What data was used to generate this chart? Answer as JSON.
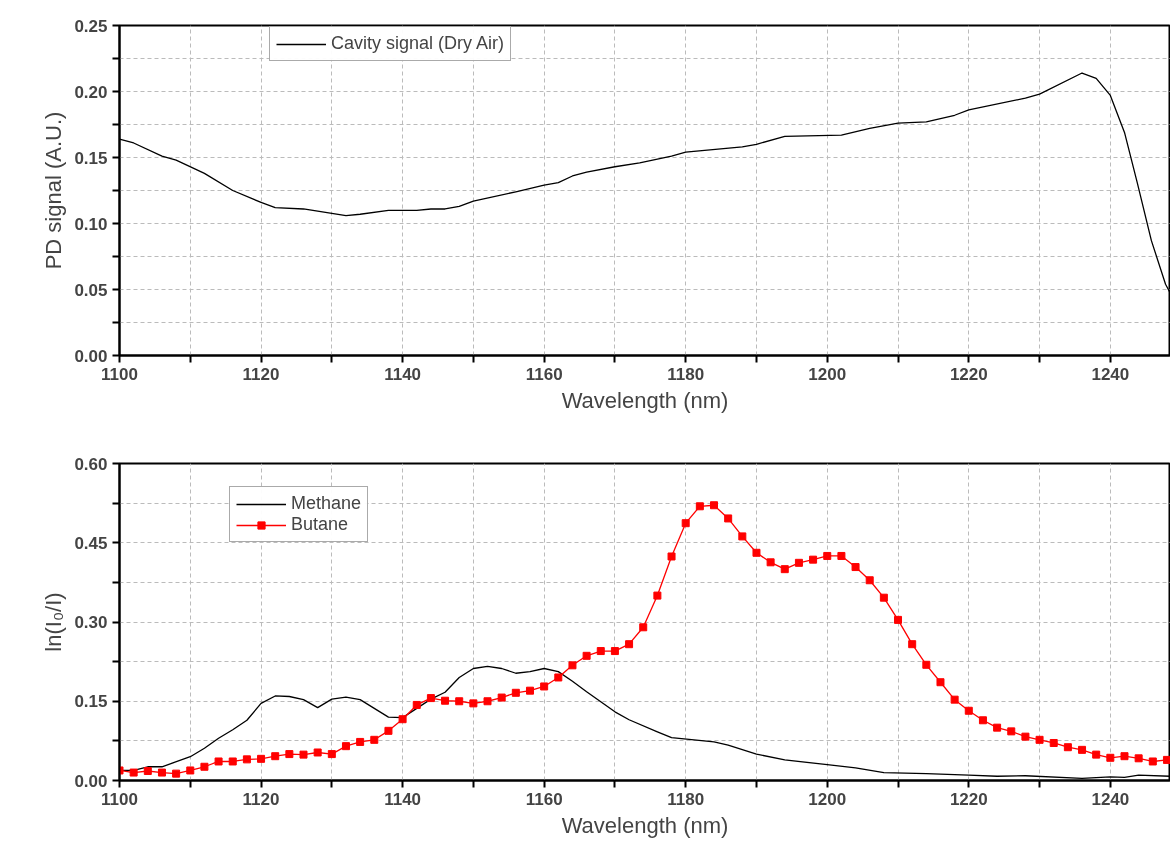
{
  "chart_data": [
    {
      "type": "line",
      "xlabel": "Wavelength (nm)",
      "ylabel": "PD signal (A.U.)",
      "legend": "top left",
      "grid": true,
      "marker": "none",
      "xlim": [
        1100,
        1248.5
      ],
      "ylim": [
        0,
        0.25
      ],
      "xticks": [
        1100,
        {
          "value": 1110,
          "label": null
        },
        1120,
        {
          "value": 1130,
          "label": null
        },
        1140,
        {
          "value": 1150,
          "label": null
        },
        1160,
        {
          "value": 1170,
          "label": null
        },
        1180,
        {
          "value": 1190,
          "label": null
        },
        1200,
        {
          "value": 1210,
          "label": null
        },
        1220,
        {
          "value": 1230,
          "label": null
        },
        1240
      ],
      "yticks": [
        {
          "value": 0,
          "label": "0.00"
        },
        {
          "value": 0.025,
          "label": null
        },
        {
          "value": 0.05,
          "label": "0.05"
        },
        {
          "value": 0.075,
          "label": null
        },
        {
          "value": 0.1,
          "label": "0.10"
        },
        {
          "value": 0.125,
          "label": null
        },
        {
          "value": 0.15,
          "label": "0.15"
        },
        {
          "value": 0.175,
          "label": null
        },
        {
          "value": 0.2,
          "label": "0.20"
        },
        {
          "value": 0.225,
          "label": null
        },
        {
          "value": 0.25,
          "label": "0.25"
        }
      ],
      "series": [
        {
          "name": "Cavity signal (Dry Air)",
          "color": "#000000",
          "x": [
            1100,
            1102,
            1106,
            1108,
            1112,
            1116,
            1120,
            1122,
            1126,
            1132,
            1134,
            1138,
            1142,
            1144,
            1146,
            1148,
            1150,
            1156,
            1160,
            1162,
            1164,
            1166,
            1170,
            1173.5,
            1178,
            1180,
            1188,
            1190,
            1194,
            1202,
            1206,
            1210,
            1214,
            1218,
            1220,
            1228,
            1230,
            1236,
            1238,
            1240,
            1242,
            1243.8,
            1245.8,
            1247.8,
            1248.4
          ],
          "values": [
            0.164,
            0.161,
            0.151,
            0.148,
            0.138,
            0.125,
            0.116,
            0.112,
            0.111,
            0.106,
            0.107,
            0.11,
            0.11,
            0.111,
            0.111,
            0.113,
            0.117,
            0.124,
            0.129,
            0.131,
            0.136,
            0.139,
            0.143,
            0.146,
            0.151,
            0.154,
            0.158,
            0.16,
            0.166,
            0.167,
            0.172,
            0.176,
            0.177,
            0.182,
            0.186,
            0.195,
            0.198,
            0.214,
            0.21,
            0.197,
            0.169,
            0.131,
            0.087,
            0.054,
            0.048
          ]
        }
      ]
    },
    {
      "type": "line",
      "xlabel": "Wavelength (nm)",
      "ylabel": "ln(I₀/I)",
      "legend": "top left",
      "grid": true,
      "xlim": [
        1100,
        1248.5
      ],
      "ylim": [
        0,
        0.6
      ],
      "xticks": [
        1100,
        {
          "value": 1110,
          "label": null
        },
        1120,
        {
          "value": 1130,
          "label": null
        },
        1140,
        {
          "value": 1150,
          "label": null
        },
        1160,
        {
          "value": 1170,
          "label": null
        },
        1180,
        {
          "value": 1190,
          "label": null
        },
        1200,
        {
          "value": 1210,
          "label": null
        },
        1220,
        {
          "value": 1230,
          "label": null
        },
        1240
      ],
      "yticks": [
        {
          "value": 0,
          "label": "0.00"
        },
        {
          "value": 0.075,
          "label": null
        },
        {
          "value": 0.15,
          "label": "0.15"
        },
        {
          "value": 0.225,
          "label": null
        },
        {
          "value": 0.3,
          "label": "0.30"
        },
        {
          "value": 0.375,
          "label": null
        },
        {
          "value": 0.45,
          "label": "0.45"
        },
        {
          "value": 0.525,
          "label": null
        },
        {
          "value": 0.6,
          "label": "0.60"
        }
      ],
      "series": [
        {
          "name": "Methane",
          "color": "#000000",
          "marker": "none",
          "x": [
            1100,
            1102,
            1104,
            1106,
            1110,
            1112,
            1114,
            1116,
            1118,
            1120,
            1122,
            1124,
            1126,
            1128,
            1130,
            1132,
            1134,
            1138,
            1140,
            1144,
            1146,
            1148,
            1150,
            1152,
            1154,
            1156,
            1158,
            1160,
            1162,
            1164,
            1166,
            1168,
            1170,
            1172,
            1176,
            1178,
            1184,
            1186,
            1190,
            1194,
            1200,
            1204,
            1208,
            1214,
            1220,
            1224,
            1228,
            1236,
            1240,
            1242,
            1244,
            1248.5
          ],
          "values": [
            0.019,
            0.019,
            0.026,
            0.026,
            0.045,
            0.061,
            0.08,
            0.096,
            0.114,
            0.146,
            0.16,
            0.159,
            0.153,
            0.138,
            0.154,
            0.158,
            0.153,
            0.12,
            0.119,
            0.154,
            0.167,
            0.195,
            0.212,
            0.216,
            0.212,
            0.203,
            0.206,
            0.212,
            0.206,
            0.188,
            0.168,
            0.149,
            0.13,
            0.115,
            0.092,
            0.081,
            0.073,
            0.067,
            0.05,
            0.039,
            0.03,
            0.024,
            0.015,
            0.013,
            0.01,
            0.008,
            0.009,
            0.004,
            0.007,
            0.006,
            0.01,
            0.008
          ]
        },
        {
          "name": "Butane",
          "color": "#ff0000",
          "marker": "square",
          "x": [
            1100,
            1102,
            1104,
            1106,
            1108,
            1110,
            1112,
            1114,
            1116,
            1118,
            1120,
            1122,
            1124,
            1126,
            1128,
            1130,
            1132,
            1134,
            1136,
            1138,
            1140,
            1142,
            1144,
            1146,
            1148,
            1150,
            1152,
            1154,
            1156,
            1158,
            1160,
            1162,
            1164,
            1166,
            1168,
            1170,
            1172,
            1174,
            1176,
            1178,
            1180,
            1182,
            1184,
            1186,
            1188,
            1190,
            1192,
            1194,
            1196,
            1198,
            1200,
            1202,
            1204,
            1206,
            1208,
            1210,
            1212,
            1214,
            1216,
            1218,
            1220,
            1222,
            1224,
            1226,
            1228,
            1230,
            1232,
            1234,
            1236,
            1238,
            1240,
            1242,
            1244,
            1246,
            1248
          ],
          "values": [
            0.019,
            0.015,
            0.018,
            0.015,
            0.013,
            0.019,
            0.026,
            0.036,
            0.036,
            0.04,
            0.041,
            0.046,
            0.05,
            0.049,
            0.053,
            0.05,
            0.065,
            0.073,
            0.077,
            0.094,
            0.116,
            0.143,
            0.156,
            0.151,
            0.15,
            0.146,
            0.15,
            0.157,
            0.166,
            0.17,
            0.178,
            0.195,
            0.218,
            0.236,
            0.245,
            0.245,
            0.258,
            0.29,
            0.35,
            0.424,
            0.487,
            0.519,
            0.521,
            0.496,
            0.462,
            0.431,
            0.413,
            0.4,
            0.412,
            0.418,
            0.425,
            0.425,
            0.404,
            0.379,
            0.346,
            0.304,
            0.258,
            0.219,
            0.186,
            0.153,
            0.132,
            0.114,
            0.1,
            0.093,
            0.083,
            0.077,
            0.071,
            0.063,
            0.058,
            0.049,
            0.043,
            0.046,
            0.042,
            0.036,
            0.039
          ]
        }
      ]
    }
  ]
}
